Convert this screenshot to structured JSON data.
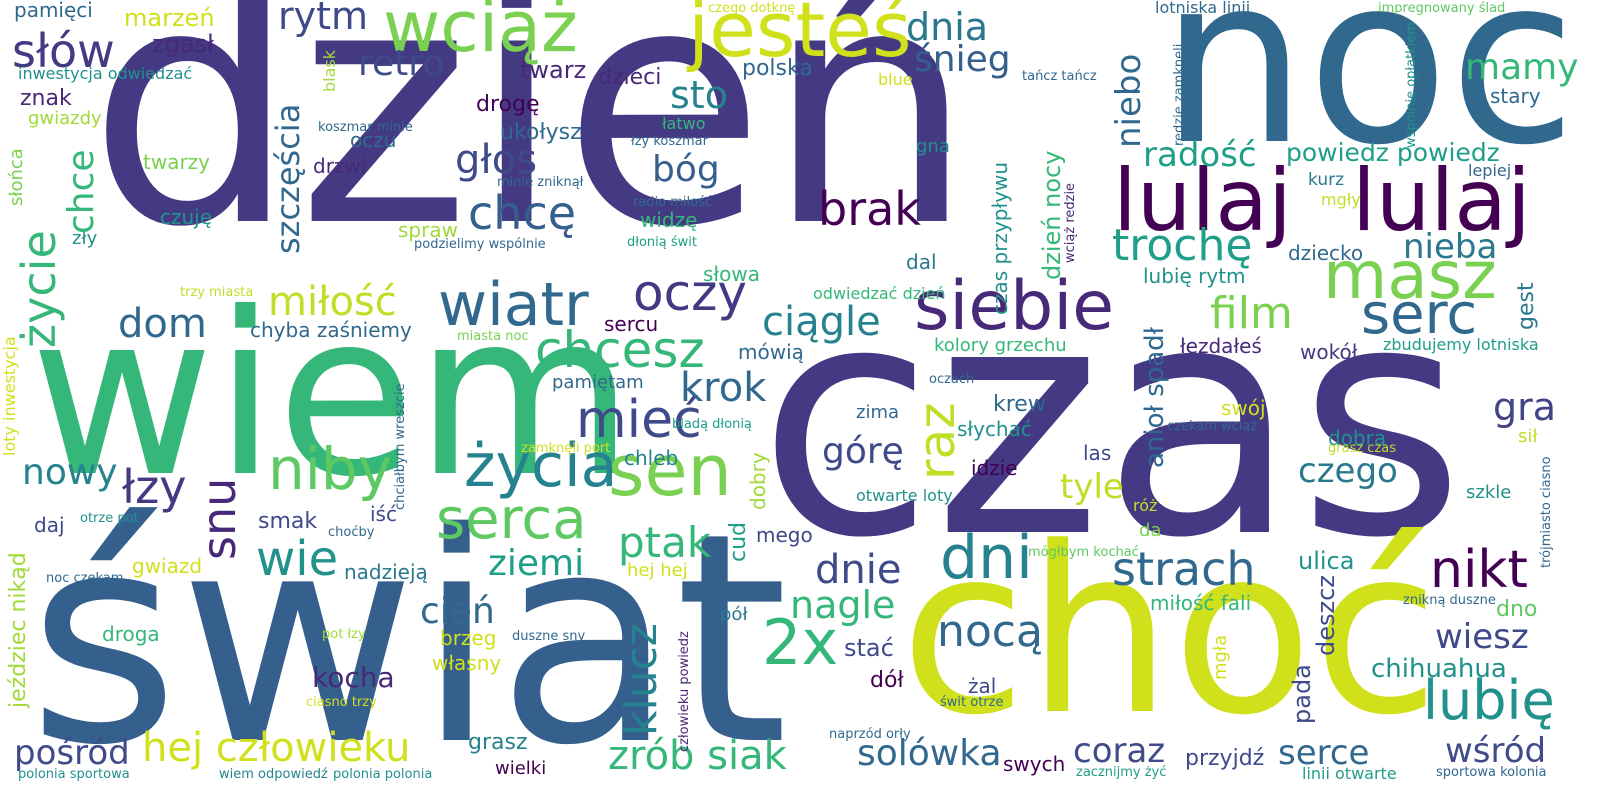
{
  "words": [
    {
      "text": "dzień",
      "color": "#443983"
    },
    {
      "text": "czas",
      "color": "#443983"
    },
    {
      "text": "świat",
      "color": "#355f8d"
    },
    {
      "text": "wiem",
      "color": "#35b779"
    },
    {
      "text": "noc",
      "color": "#31688e"
    },
    {
      "text": "choć",
      "color": "#d0e11c"
    },
    {
      "text": "lulaj",
      "color": "#440154"
    },
    {
      "text": "lulaj",
      "color": "#440154"
    },
    {
      "text": "jesteś",
      "color": "#d0e11c"
    },
    {
      "text": "wciąż",
      "color": "#7ad151"
    },
    {
      "text": "siebie",
      "color": "#482878"
    },
    {
      "text": "masz",
      "color": "#7ad151"
    },
    {
      "text": "serc",
      "color": "#31688e"
    },
    {
      "text": "wiatr",
      "color": "#31688e"
    },
    {
      "text": "sen",
      "color": "#7ad151"
    },
    {
      "text": "życia",
      "color": "#26828e"
    },
    {
      "text": "niby",
      "color": "#5ec962"
    },
    {
      "text": "serca",
      "color": "#5ec962"
    },
    {
      "text": "chcesz",
      "color": "#35b779"
    },
    {
      "text": "oczy",
      "color": "#443983"
    },
    {
      "text": "dni",
      "color": "#26828e"
    },
    {
      "text": "2x",
      "color": "#35b779"
    },
    {
      "text": "nocą",
      "color": "#31688e"
    },
    {
      "text": "strach",
      "color": "#31688e"
    },
    {
      "text": "nikt",
      "color": "#440154"
    },
    {
      "text": "lubię",
      "color": "#21918c"
    },
    {
      "text": "mieć",
      "color": "#3e4a89"
    },
    {
      "text": "brak",
      "color": "#440154"
    },
    {
      "text": "chcę",
      "color": "#355f8d"
    },
    {
      "text": "trochę",
      "color": "#1f9e89"
    },
    {
      "text": "ciągle",
      "color": "#26828e"
    },
    {
      "text": "film",
      "color": "#7ad151"
    },
    {
      "text": "miłość",
      "color": "#bddf26"
    },
    {
      "text": "dom",
      "color": "#31688e"
    },
    {
      "text": "słów",
      "color": "#443983"
    },
    {
      "text": "rytm",
      "color": "#3e4a89"
    },
    {
      "text": "retro",
      "color": "#3e4a89"
    },
    {
      "text": "dnia",
      "color": "#2a788e"
    },
    {
      "text": "śnieg",
      "color": "#355f8d"
    },
    {
      "text": "sto",
      "color": "#26828e"
    },
    {
      "text": "głos",
      "color": "#3e4a89"
    },
    {
      "text": "bóg",
      "color": "#355f8d"
    },
    {
      "text": "mamy",
      "color": "#35b779"
    },
    {
      "text": "radość",
      "color": "#1f9e89"
    },
    {
      "text": "powiedz powiedz",
      "color": "#1f9e89"
    },
    {
      "text": "nieba",
      "color": "#2a788e"
    },
    {
      "text": "krok",
      "color": "#31688e"
    },
    {
      "text": "gra",
      "color": "#414487"
    },
    {
      "text": "nowy",
      "color": "#26828e"
    },
    {
      "text": "łzy",
      "color": "#443983"
    },
    {
      "text": "wie",
      "color": "#21918c"
    },
    {
      "text": "ptak",
      "color": "#35b779"
    },
    {
      "text": "ziemi",
      "color": "#1f9e89"
    },
    {
      "text": "cień",
      "color": "#31688e"
    },
    {
      "text": "dnie",
      "color": "#3e4a89"
    },
    {
      "text": "nagle",
      "color": "#35b779"
    },
    {
      "text": "górę",
      "color": "#3e4a89"
    },
    {
      "text": "tyle",
      "color": "#bddf26"
    },
    {
      "text": "czego",
      "color": "#2a788e"
    },
    {
      "text": "wiesz",
      "color": "#3e4a89"
    },
    {
      "text": "chihuahua",
      "color": "#21918c"
    },
    {
      "text": "hej człowieku",
      "color": "#d0e11c"
    },
    {
      "text": "zrób siak",
      "color": "#35b779"
    },
    {
      "text": "solówka",
      "color": "#31688e"
    },
    {
      "text": "coraz",
      "color": "#3e4a89"
    },
    {
      "text": "serce",
      "color": "#31688e"
    },
    {
      "text": "wśród",
      "color": "#3e4a89"
    },
    {
      "text": "pośród",
      "color": "#3e4a89"
    },
    {
      "text": "kocha",
      "color": "#482878"
    },
    {
      "text": "gwiazdy",
      "color": "#a0da39"
    },
    {
      "text": "znak",
      "color": "#482878"
    },
    {
      "text": "marzeń",
      "color": "#d0e11c"
    },
    {
      "text": "zgasł",
      "color": "#482878"
    },
    {
      "text": "pamięci",
      "color": "#31688e"
    },
    {
      "text": "twarz",
      "color": "#482878"
    },
    {
      "text": "dzieci",
      "color": "#482878"
    },
    {
      "text": "polska",
      "color": "#31688e"
    },
    {
      "text": "drogę",
      "color": "#440154"
    },
    {
      "text": "ukołysz",
      "color": "#31688e"
    },
    {
      "text": "twarzy",
      "color": "#7ad151"
    },
    {
      "text": "oczu",
      "color": "#31688e"
    },
    {
      "text": "drzwi",
      "color": "#482878"
    },
    {
      "text": "czuję",
      "color": "#21918c"
    },
    {
      "text": "zły",
      "color": "#21918c"
    },
    {
      "text": "spraw",
      "color": "#a0da39"
    },
    {
      "text": "widzę",
      "color": "#35b779"
    },
    {
      "text": "słowa",
      "color": "#35b779"
    },
    {
      "text": "dal",
      "color": "#2a788e"
    },
    {
      "text": "chyba zaśniemy",
      "color": "#31688e"
    },
    {
      "text": "sercu",
      "color": "#440154"
    },
    {
      "text": "mówią",
      "color": "#31688e"
    },
    {
      "text": "pamiętam",
      "color": "#31688e"
    },
    {
      "text": "kolory grzechu",
      "color": "#35b779"
    },
    {
      "text": "łezdałeś",
      "color": "#482878"
    },
    {
      "text": "wokół",
      "color": "#443983"
    },
    {
      "text": "zbudujemy lotniska",
      "color": "#1f9e89"
    },
    {
      "text": "kurz",
      "color": "#2a788e"
    },
    {
      "text": "lepiej",
      "color": "#31688e"
    },
    {
      "text": "stary",
      "color": "#31688e"
    },
    {
      "text": "mgły",
      "color": "#bddf26"
    },
    {
      "text": "dziecko",
      "color": "#31688e"
    },
    {
      "text": "lubię rytm",
      "color": "#21918c"
    },
    {
      "text": "zima",
      "color": "#31688e"
    },
    {
      "text": "słychać",
      "color": "#21918c"
    },
    {
      "text": "krew",
      "color": "#31688e"
    },
    {
      "text": "swój",
      "color": "#d0e11c"
    },
    {
      "text": "dobra",
      "color": "#21918c"
    },
    {
      "text": "idzie",
      "color": "#440154"
    },
    {
      "text": "las",
      "color": "#3e4a89"
    },
    {
      "text": "chleb",
      "color": "#26828e"
    },
    {
      "text": "smak",
      "color": "#3e4a89"
    },
    {
      "text": "iść",
      "color": "#3e4a89"
    },
    {
      "text": "daj",
      "color": "#3e4a89"
    },
    {
      "text": "nadzieją",
      "color": "#2a788e"
    },
    {
      "text": "hej hej",
      "color": "#d0e11c"
    },
    {
      "text": "gwiazd",
      "color": "#d0e11c"
    },
    {
      "text": "droga",
      "color": "#35b779"
    },
    {
      "text": "brzeg",
      "color": "#d0e11c"
    },
    {
      "text": "własny",
      "color": "#d0e11c"
    },
    {
      "text": "stać",
      "color": "#3e4a89"
    },
    {
      "text": "dół",
      "color": "#440154"
    },
    {
      "text": "żal",
      "color": "#3e4a89"
    },
    {
      "text": "mego",
      "color": "#3e4a89"
    },
    {
      "text": "pół",
      "color": "#2a788e"
    },
    {
      "text": "róż",
      "color": "#bddf26"
    },
    {
      "text": "da",
      "color": "#7ad151"
    },
    {
      "text": "ulica",
      "color": "#21918c"
    },
    {
      "text": "miłość fali",
      "color": "#35b779"
    },
    {
      "text": "dno",
      "color": "#5ec962"
    },
    {
      "text": "sił",
      "color": "#bddf26"
    },
    {
      "text": "szkle",
      "color": "#21918c"
    },
    {
      "text": "przyjdź",
      "color": "#3e4a89"
    },
    {
      "text": "grasz",
      "color": "#26828e"
    },
    {
      "text": "wielki",
      "color": "#440154"
    },
    {
      "text": "swych",
      "color": "#440154"
    },
    {
      "text": "blue",
      "color": "#d0e11c"
    },
    {
      "text": "gna",
      "color": "#21918c"
    },
    {
      "text": "łatwo",
      "color": "#35b779"
    },
    {
      "text": "łzy koszmar",
      "color": "#31688e"
    },
    {
      "text": "koszmar minie",
      "color": "#31688e"
    },
    {
      "text": "minie zniknął",
      "color": "#31688e"
    },
    {
      "text": "radio miłość",
      "color": "#31688e"
    },
    {
      "text": "dłonią świt",
      "color": "#1f9e89"
    },
    {
      "text": "podzielimy wspólnie",
      "color": "#31688e"
    },
    {
      "text": "czego dotknę",
      "color": "#d0e11c"
    },
    {
      "text": "lotniska linii",
      "color": "#31688e"
    },
    {
      "text": "impregnowany ślad",
      "color": "#5ec962"
    },
    {
      "text": "tańcz tańcz",
      "color": "#31688e"
    },
    {
      "text": "inwestycja odwiedzać",
      "color": "#21918c"
    },
    {
      "text": "trzy miasta",
      "color": "#bddf26"
    },
    {
      "text": "miasta noc",
      "color": "#7ad151"
    },
    {
      "text": "odwiedzać dzień",
      "color": "#35b779"
    },
    {
      "text": "oczach",
      "color": "#31688e"
    },
    {
      "text": "czekam wciąż",
      "color": "#31688e"
    },
    {
      "text": "bladą dłonią",
      "color": "#1f9e89"
    },
    {
      "text": "grasz czas",
      "color": "#bddf26"
    },
    {
      "text": "zamknęli port",
      "color": "#d0e11c"
    },
    {
      "text": "otwarte loty",
      "color": "#21918c"
    },
    {
      "text": "otrze pot",
      "color": "#21918c"
    },
    {
      "text": "choćby",
      "color": "#31688e"
    },
    {
      "text": "noc czekam",
      "color": "#31688e"
    },
    {
      "text": "mógłbym kochać",
      "color": "#5ec962"
    },
    {
      "text": "znikną duszne",
      "color": "#31688e"
    },
    {
      "text": "pot łzy",
      "color": "#a0da39"
    },
    {
      "text": "duszne sny",
      "color": "#31688e"
    },
    {
      "text": "ciasno trzy",
      "color": "#d0e11c"
    },
    {
      "text": "świt otrze",
      "color": "#31688e"
    },
    {
      "text": "naprzód orły",
      "color": "#31688e"
    },
    {
      "text": "polonia sportowa",
      "color": "#21918c"
    },
    {
      "text": "wiem odpowiedź",
      "color": "#26828e"
    },
    {
      "text": "polonia polonia",
      "color": "#21918c"
    },
    {
      "text": "zacznijmy żyć",
      "color": "#1f9e89"
    },
    {
      "text": "linii otwarte",
      "color": "#1f9e89"
    },
    {
      "text": "sportowa kolonia",
      "color": "#31688e"
    },
    {
      "text": "szczęścia",
      "color": "#31688e"
    },
    {
      "text": "życie",
      "color": "#35b779"
    },
    {
      "text": "chce",
      "color": "#35b779"
    },
    {
      "text": "snu",
      "color": "#482878"
    },
    {
      "text": "raz",
      "color": "#bddf26"
    },
    {
      "text": "niebo",
      "color": "#31688e"
    },
    {
      "text": "klucz",
      "color": "#26828e"
    },
    {
      "text": "cud",
      "color": "#1f9e89"
    },
    {
      "text": "dobry",
      "color": "#a0da39"
    },
    {
      "text": "anioł spadł",
      "color": "#31688e"
    },
    {
      "text": "gest",
      "color": "#2a788e"
    },
    {
      "text": "deszcz",
      "color": "#3e4a89"
    },
    {
      "text": "pada",
      "color": "#3e4a89"
    },
    {
      "text": "mgła",
      "color": "#d0e11c"
    },
    {
      "text": "dzień nocy",
      "color": "#35b779"
    },
    {
      "text": "czas przypływu",
      "color": "#21918c"
    },
    {
      "text": "wciąż redzie",
      "color": "#482878"
    },
    {
      "text": "redzie zamknęli",
      "color": "#31688e"
    },
    {
      "text": "wspólnie opłatkiem",
      "color": "#21918c"
    },
    {
      "text": "jeździec nikąd",
      "color": "#a0da39"
    },
    {
      "text": "loty inwestycja",
      "color": "#d0e11c"
    },
    {
      "text": "słońca",
      "color": "#7ad151"
    },
    {
      "text": "blask",
      "color": "#a0da39"
    },
    {
      "text": "chciałbym wreszcie",
      "color": "#31688e"
    },
    {
      "text": "człowieku powiedz",
      "color": "#482878"
    },
    {
      "text": "trójmiasto ciasno",
      "color": "#31688e"
    }
  ]
}
